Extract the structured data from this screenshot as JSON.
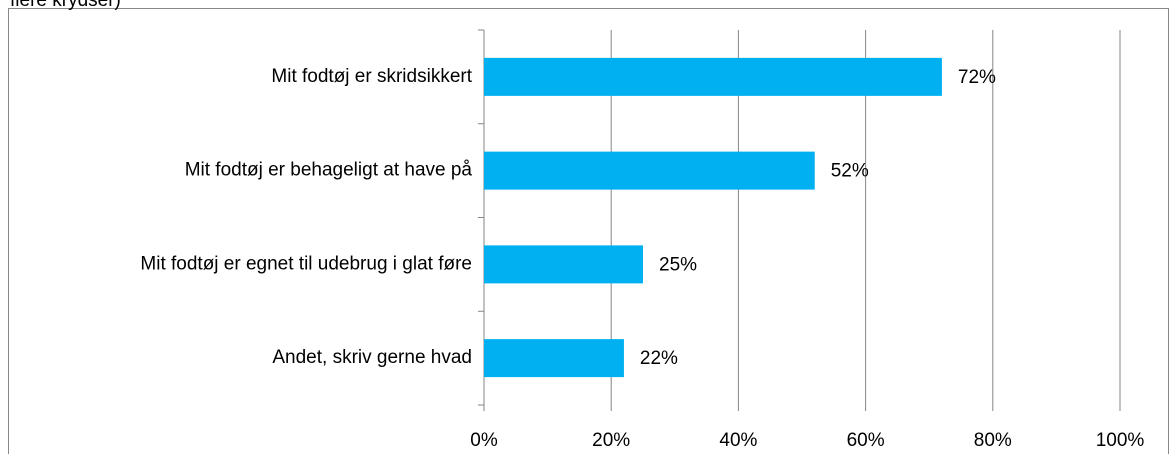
{
  "chart_data": {
    "type": "bar",
    "orientation": "horizontal",
    "title": "flere krydser)",
    "categories": [
      "Mit fodtøj er skridsikkert",
      "Mit fodtøj er behageligt at have på",
      "Mit fodtøj er egnet til udebrug i glat føre",
      "Andet, skriv gerne hvad"
    ],
    "values": [
      72,
      52,
      25,
      22
    ],
    "value_labels": [
      "72%",
      "52%",
      "25%",
      "22%"
    ],
    "color": "#00b0f0",
    "xlim": [
      0,
      100
    ],
    "xticks": [
      {
        "value": 0,
        "label": "0%"
      },
      {
        "value": 20,
        "label": "20%"
      },
      {
        "value": 40,
        "label": "40%"
      },
      {
        "value": 60,
        "label": "60%"
      },
      {
        "value": 80,
        "label": "80%"
      },
      {
        "value": 100,
        "label": "100%"
      }
    ],
    "grid": true
  }
}
